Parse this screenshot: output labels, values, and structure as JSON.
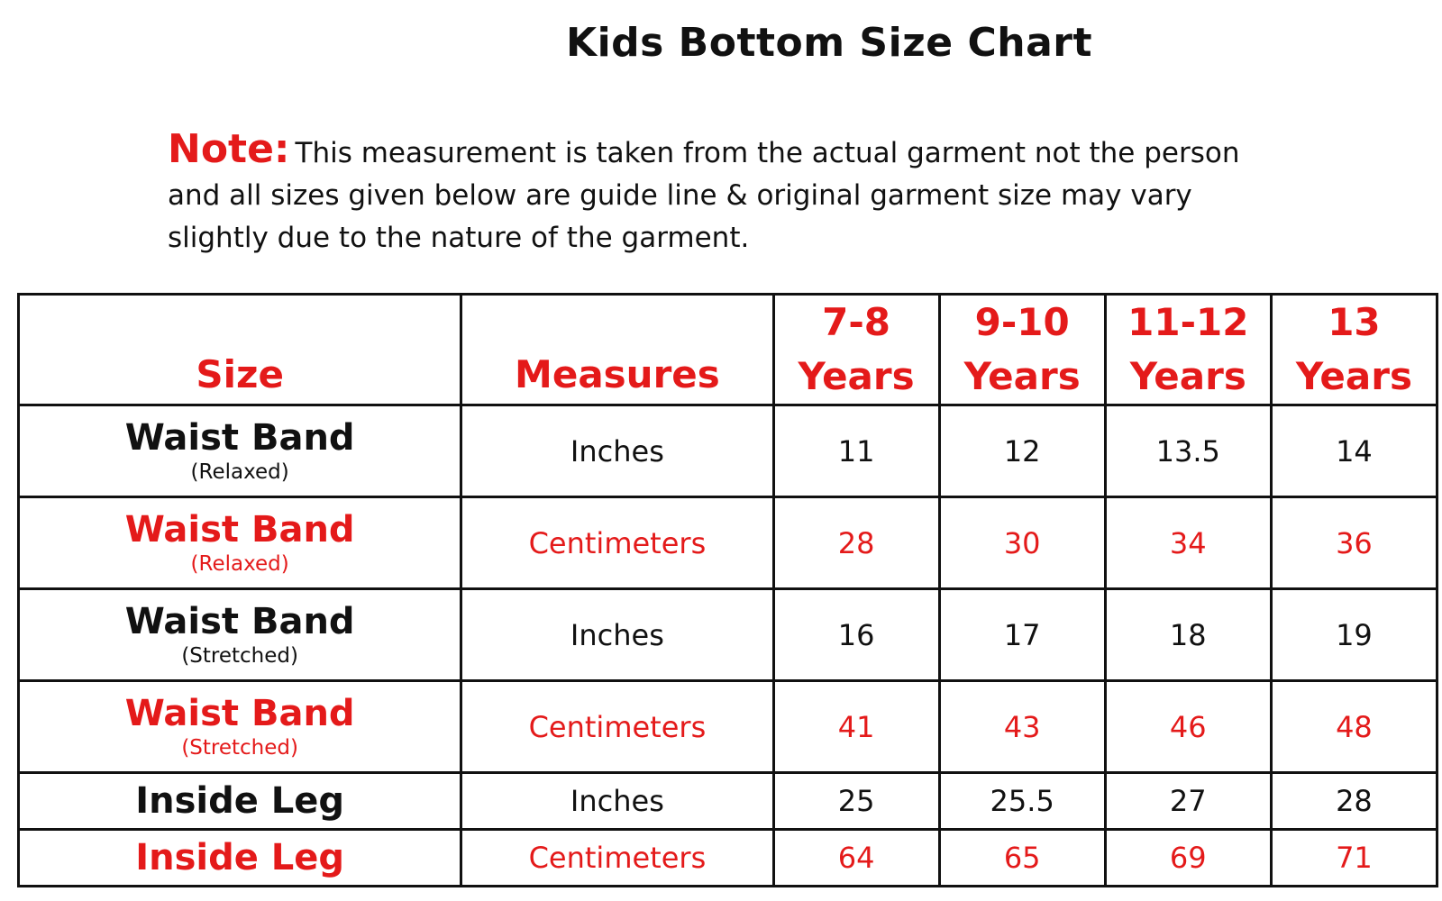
{
  "title": "Kids Bottom Size Chart",
  "note": {
    "label": "Note:",
    "text": "This measurement is taken from the actual garment not the person and all sizes given below are guide line & original garment size may vary slightly due to the nature of the garment."
  },
  "colors": {
    "accent_red": "#e41a1a",
    "text_black": "#111111"
  },
  "table": {
    "header": {
      "size": "Size",
      "measures": "Measures",
      "ages": [
        {
          "top": "7-8",
          "bottom": "Years"
        },
        {
          "top": "9-10",
          "bottom": "Years"
        },
        {
          "top": "11-12",
          "bottom": "Years"
        },
        {
          "top": "13",
          "bottom": "Years"
        }
      ]
    },
    "rows": [
      {
        "label": "Waist Band",
        "sub": "(Relaxed)",
        "measure": "Inches",
        "values": [
          "11",
          "12",
          "13.5",
          "14"
        ]
      },
      {
        "label": "Waist Band",
        "sub": "(Relaxed)",
        "measure": "Centimeters",
        "values": [
          "28",
          "30",
          "34",
          "36"
        ]
      },
      {
        "label": "Waist Band",
        "sub": "(Stretched)",
        "measure": "Inches",
        "values": [
          "16",
          "17",
          "18",
          "19"
        ]
      },
      {
        "label": "Waist Band",
        "sub": "(Stretched)",
        "measure": "Centimeters",
        "values": [
          "41",
          "43",
          "46",
          "48"
        ]
      },
      {
        "label": "Inside Leg",
        "sub": "",
        "measure": "Inches",
        "values": [
          "25",
          "25.5",
          "27",
          "28"
        ]
      },
      {
        "label": "Inside Leg",
        "sub": "",
        "measure": "Centimeters",
        "values": [
          "64",
          "65",
          "69",
          "71"
        ]
      }
    ]
  }
}
